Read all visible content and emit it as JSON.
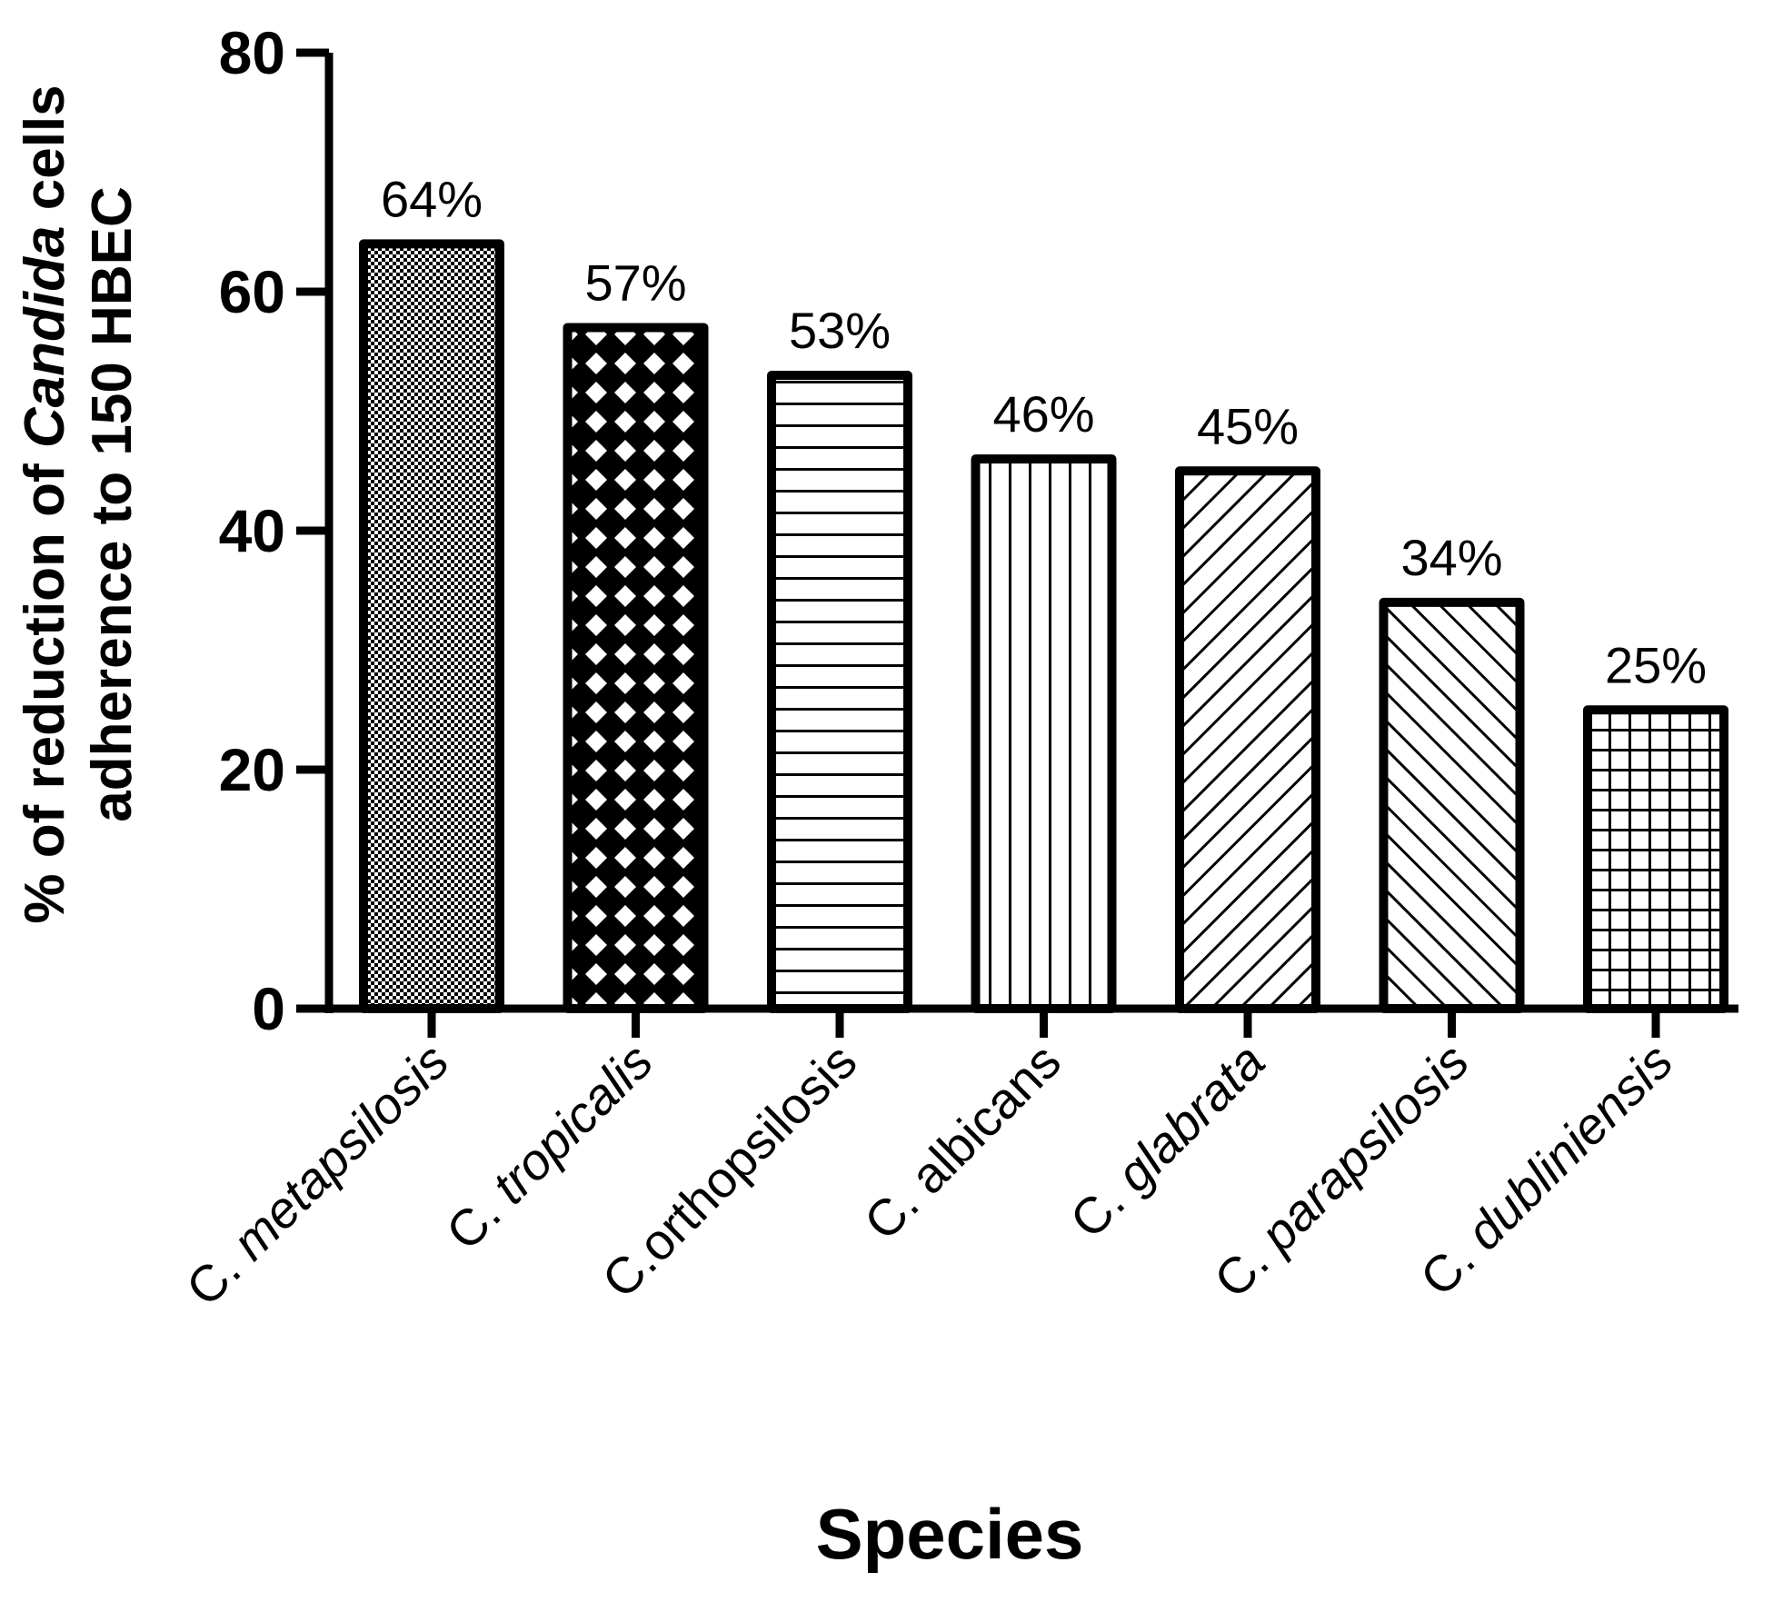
{
  "chart_data": {
    "type": "bar",
    "title": "",
    "xlabel": "Species",
    "ylabel": {
      "prefix": "% of reduction of ",
      "italic": "Candida",
      "suffix": " cells",
      "line2": "adherence to 150 HBEC"
    },
    "ylim": [
      0,
      80
    ],
    "yticks": [
      0,
      20,
      40,
      60,
      80
    ],
    "grid": false,
    "legend": "none",
    "categories": [
      {
        "prefix": "C. ",
        "species": "metapsilosis",
        "italic": true
      },
      {
        "prefix": "C. ",
        "species": "tropicalis",
        "italic": true
      },
      {
        "prefix": "C.",
        "species": "orthopsilosis",
        "italic": false
      },
      {
        "prefix": "C. ",
        "species": "albicans",
        "italic": false
      },
      {
        "prefix": "C. ",
        "species": "glabrata",
        "italic": true
      },
      {
        "prefix": "C. ",
        "species": "parapsilosis",
        "italic": true
      },
      {
        "prefix": "C. ",
        "species": "dubliniensis",
        "italic": true
      }
    ],
    "values": [
      64,
      57,
      53,
      46,
      45,
      34,
      25
    ],
    "data_labels": [
      "64%",
      "57%",
      "53%",
      "46%",
      "45%",
      "34%",
      "25%"
    ],
    "patterns": [
      "fine-checker",
      "diamond-lattice",
      "horizontal-lines",
      "vertical-lines",
      "diagonal-up",
      "diagonal-down",
      "grid"
    ],
    "colors": {
      "ink": "#000000",
      "background": "#ffffff",
      "checker": "#8a8a8a"
    }
  }
}
